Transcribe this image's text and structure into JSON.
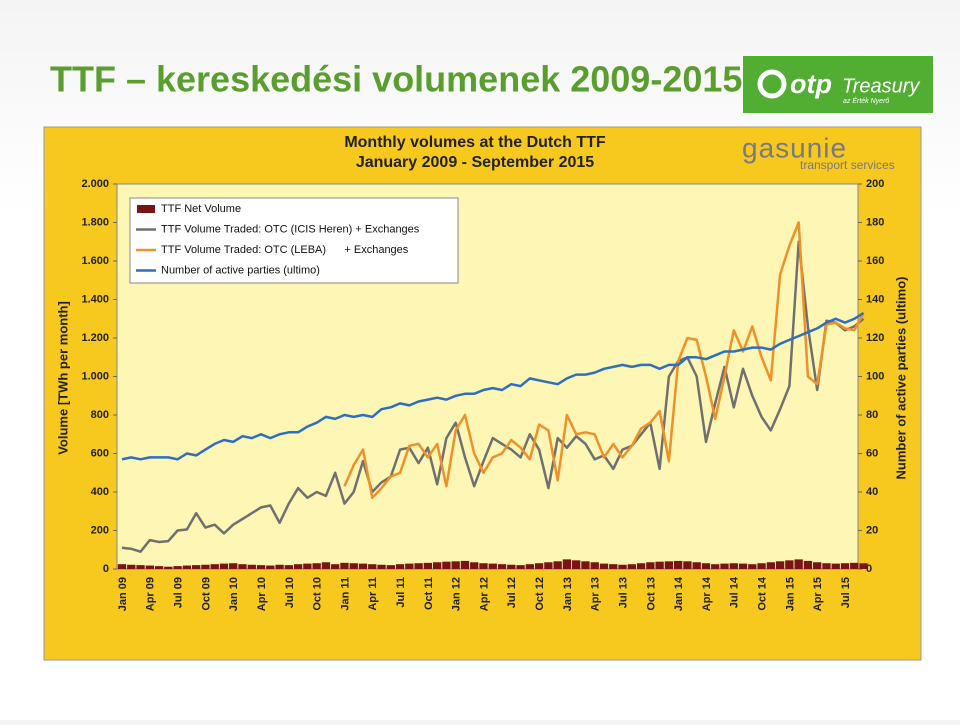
{
  "slide": {
    "title": "TTF – kereskedési volumenek 2009-2015",
    "logo_main": "otp",
    "logo_sub": "Treasury",
    "logo_tagline": "az Érték Nyerő"
  },
  "chart_data": {
    "type": "line",
    "title": "Monthly volumes at the Dutch TTF",
    "subtitle": "January 2009 - September 2015",
    "brand": "gasunie",
    "brand_sub": "transport services",
    "ylabel": "Volume [TWh per month]",
    "y2label": "Number of active parties (ultimo)",
    "categories": [
      "Jan 09",
      null,
      null,
      "Apr 09",
      null,
      null,
      "Jul 09",
      null,
      null,
      "Oct 09",
      null,
      null,
      "Jan 10",
      null,
      null,
      "Apr 10",
      null,
      null,
      "Jul 10",
      null,
      null,
      "Oct 10",
      null,
      null,
      "Jan 11",
      null,
      null,
      "Apr 11",
      null,
      null,
      "Jul 11",
      null,
      null,
      "Oct 11",
      null,
      null,
      "Jan 12",
      null,
      null,
      "Apr 12",
      null,
      null,
      "Jul 12",
      null,
      null,
      "Oct 12",
      null,
      null,
      "Jan 13",
      null,
      null,
      "Apr 13",
      null,
      null,
      "Jul 13",
      null,
      null,
      "Oct 13",
      null,
      null,
      "Jan 14",
      null,
      null,
      "Apr 14",
      null,
      null,
      "Jul 14",
      null,
      null,
      "Oct 14",
      null,
      null,
      "Jan 15",
      null,
      null,
      "Apr 15",
      null,
      null,
      "Jul 15",
      null,
      null
    ],
    "series": [
      {
        "name": "TTF Net Volume",
        "type": "bar",
        "color": "#7a1414",
        "values": [
          25,
          22,
          20,
          18,
          15,
          12,
          15,
          18,
          20,
          22,
          25,
          28,
          30,
          25,
          22,
          20,
          18,
          22,
          20,
          25,
          28,
          30,
          35,
          25,
          32,
          30,
          28,
          25,
          22,
          20,
          25,
          28,
          30,
          32,
          35,
          38,
          40,
          42,
          35,
          30,
          28,
          25,
          22,
          20,
          25,
          30,
          35,
          40,
          50,
          45,
          40,
          35,
          28,
          25,
          22,
          25,
          30,
          35,
          38,
          40,
          42,
          40,
          35,
          30,
          25,
          28,
          30,
          28,
          25,
          30,
          35,
          40,
          45,
          50,
          42,
          35,
          30,
          28,
          30,
          32,
          30
        ]
      },
      {
        "name": "TTF Volume Traded: OTC (ICIS Heren) + Exchanges",
        "type": "line",
        "color": "#707070",
        "values": [
          110,
          105,
          90,
          150,
          140,
          145,
          200,
          205,
          290,
          215,
          230,
          185,
          230,
          260,
          290,
          320,
          330,
          240,
          340,
          420,
          370,
          400,
          380,
          500,
          340,
          400,
          560,
          400,
          450,
          480,
          620,
          630,
          550,
          630,
          440,
          680,
          760,
          580,
          430,
          560,
          680,
          650,
          620,
          580,
          700,
          620,
          420,
          680,
          630,
          690,
          650,
          570,
          590,
          520,
          620,
          640,
          700,
          760,
          520,
          1000,
          1080,
          1100,
          1000,
          660,
          860,
          1050,
          840,
          1040,
          900,
          790,
          720,
          830,
          950,
          1700,
          1260,
          930,
          1290,
          1280,
          1240,
          1260,
          1300
        ]
      },
      {
        "name": "TTF Volume Traded: OTC (LEBA)      + Exchanges",
        "type": "line",
        "color": "#f0902a",
        "values": [
          null,
          null,
          null,
          null,
          null,
          null,
          null,
          null,
          null,
          null,
          null,
          null,
          null,
          null,
          null,
          null,
          null,
          null,
          null,
          null,
          null,
          null,
          null,
          null,
          430,
          540,
          620,
          370,
          420,
          480,
          500,
          640,
          650,
          580,
          650,
          430,
          720,
          800,
          600,
          500,
          580,
          600,
          670,
          630,
          570,
          750,
          720,
          460,
          800,
          700,
          710,
          700,
          580,
          650,
          580,
          640,
          730,
          760,
          820,
          560,
          1080,
          1200,
          1190,
          1000,
          780,
          1000,
          1240,
          1130,
          1260,
          1100,
          980,
          1530,
          1680,
          1800,
          1000,
          960,
          1270,
          1280,
          1250,
          1240,
          1330
        ]
      },
      {
        "name": "Number of active parties (ultimo)",
        "type": "line",
        "axis": "y2",
        "color": "#2f6fc0",
        "values": [
          57,
          58,
          57,
          58,
          58,
          58,
          57,
          60,
          59,
          62,
          65,
          67,
          66,
          69,
          68,
          70,
          68,
          70,
          71,
          71,
          74,
          76,
          79,
          78,
          80,
          79,
          80,
          79,
          83,
          84,
          86,
          85,
          87,
          88,
          89,
          88,
          90,
          91,
          91,
          93,
          94,
          93,
          96,
          95,
          99,
          98,
          97,
          96,
          99,
          101,
          101,
          102,
          104,
          105,
          106,
          105,
          106,
          106,
          104,
          106,
          106,
          110,
          110,
          109,
          111,
          113,
          113,
          114,
          115,
          115,
          114,
          117,
          119,
          121,
          123,
          125,
          128,
          130,
          128,
          130,
          133
        ]
      }
    ],
    "ylim": [
      0,
      2000
    ],
    "yticks": [
      0,
      200,
      400,
      600,
      800,
      {
        "value": 1000,
        "label": "1.000"
      },
      {
        "value": 1200,
        "label": "1.200"
      },
      {
        "value": 1400,
        "label": "1.400"
      },
      {
        "value": 1600,
        "label": "1.600"
      },
      {
        "value": 1800,
        "label": "1.800"
      },
      {
        "value": 2000,
        "label": "2.000"
      }
    ],
    "y2lim": [
      0,
      200
    ],
    "y2ticks": [
      0,
      20,
      40,
      60,
      80,
      100,
      120,
      140,
      160,
      180,
      200
    ],
    "grid": false,
    "legend": "upper left"
  }
}
